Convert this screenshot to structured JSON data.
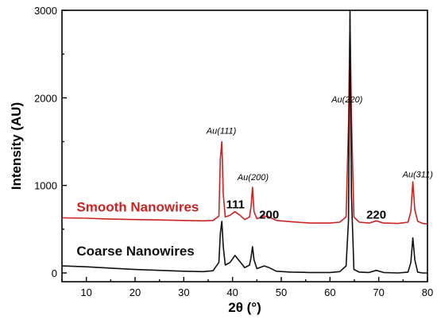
{
  "chart_data": {
    "type": "line",
    "xlabel": "2θ (°)",
    "ylabel": "Intensity (AU)",
    "xlim": [
      5,
      80
    ],
    "ylim": [
      -100,
      3000
    ],
    "x_ticks": [
      10,
      20,
      30,
      40,
      50,
      60,
      70,
      80
    ],
    "y_ticks": [
      0,
      1000,
      2000,
      3000
    ],
    "grid": false,
    "series": [
      {
        "name": "Smooth Nanowires",
        "color": "#cc2222",
        "x": [
          5,
          10,
          15,
          20,
          25,
          30,
          34,
          36,
          37.2,
          37.5,
          37.8,
          38.1,
          38.5,
          39.5,
          40.5,
          41.5,
          42.5,
          43.5,
          43.8,
          44.1,
          44.4,
          45,
          46.5,
          47.5,
          49,
          52,
          56,
          60,
          62,
          63.3,
          63.8,
          64.1,
          64.4,
          64.9,
          66,
          68,
          69.5,
          71,
          74,
          76,
          76.6,
          77,
          77.4,
          78,
          79,
          80
        ],
        "y": [
          630,
          625,
          615,
          610,
          605,
          600,
          595,
          600,
          650,
          1300,
          1500,
          900,
          640,
          660,
          700,
          660,
          610,
          640,
          760,
          980,
          700,
          620,
          650,
          640,
          600,
          585,
          570,
          570,
          580,
          640,
          1700,
          2900,
          1800,
          640,
          580,
          570,
          595,
          570,
          565,
          580,
          700,
          1040,
          720,
          590,
          565,
          560
        ]
      },
      {
        "name": "Coarse Nanowires",
        "color": "#111111",
        "x": [
          5,
          10,
          15,
          20,
          25,
          30,
          34,
          36,
          37.2,
          37.5,
          37.8,
          38.1,
          38.5,
          39.5,
          40.5,
          41.5,
          42.5,
          43.5,
          43.8,
          44.1,
          44.4,
          45,
          46.5,
          47.5,
          49,
          52,
          56,
          60,
          62,
          63.3,
          63.8,
          64.1,
          64.4,
          64.9,
          66,
          68,
          69.5,
          71,
          74,
          76,
          76.6,
          77,
          77.4,
          78,
          79,
          80
        ],
        "y": [
          80,
          70,
          55,
          40,
          30,
          20,
          15,
          25,
          120,
          450,
          590,
          300,
          90,
          120,
          200,
          130,
          60,
          90,
          180,
          300,
          150,
          50,
          80,
          60,
          20,
          10,
          5,
          5,
          15,
          80,
          600,
          3000,
          900,
          40,
          10,
          5,
          30,
          5,
          0,
          10,
          120,
          400,
          150,
          10,
          0,
          0
        ]
      }
    ],
    "peak_annotations_italic": [
      {
        "text": "Au(111)",
        "x": 37.7,
        "y": 1590
      },
      {
        "text": "Au(200)",
        "x": 44.2,
        "y": 1060
      },
      {
        "text": "Au(220)",
        "x": 63.5,
        "y": 1950
      },
      {
        "text": "Au(311)",
        "x": 78,
        "y": 1090
      }
    ],
    "peak_annotations_bold": [
      {
        "text": "111",
        "x": 40.6,
        "y": 740
      },
      {
        "text": "200",
        "x": 47.5,
        "y": 620
      },
      {
        "text": "220",
        "x": 69.5,
        "y": 620
      }
    ],
    "series_labels": [
      {
        "text": "Smooth Nanowires",
        "x": 8,
        "y": 700,
        "color": "#cc2222"
      },
      {
        "text": "Coarse Nanowires",
        "x": 8,
        "y": 200,
        "color": "#111111"
      }
    ]
  }
}
